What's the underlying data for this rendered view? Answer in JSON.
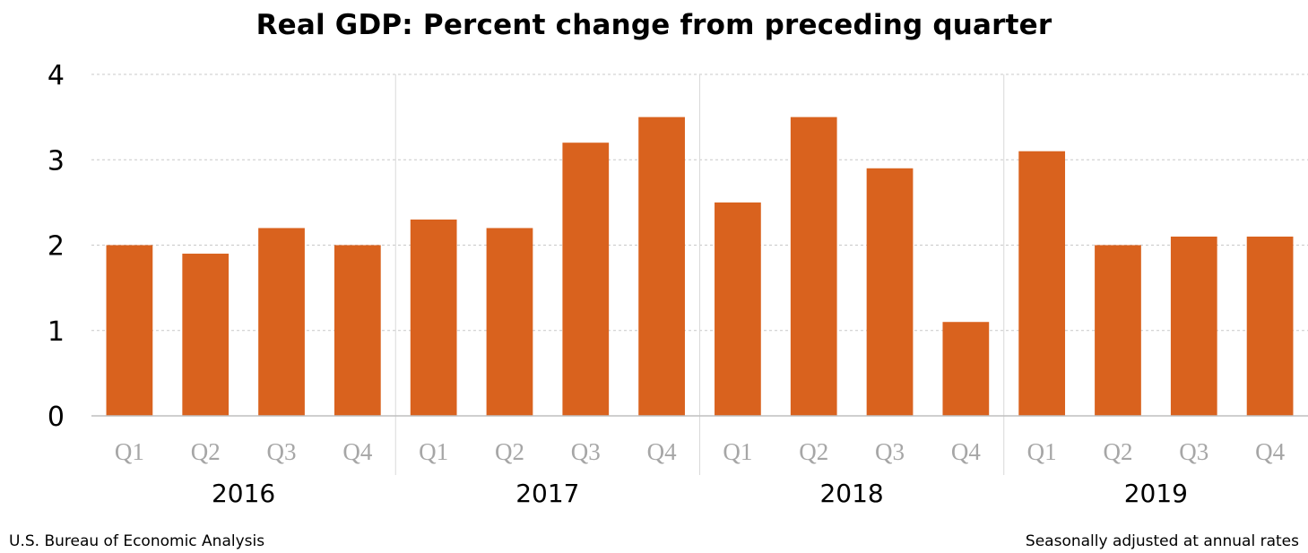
{
  "chart_data": {
    "type": "bar",
    "title": "Real GDP:  Percent change from preceding quarter",
    "groups": [
      {
        "label": "2016",
        "quarters": [
          "Q1",
          "Q2",
          "Q3",
          "Q4"
        ],
        "values": [
          2.0,
          1.9,
          2.2,
          2.0
        ]
      },
      {
        "label": "2017",
        "quarters": [
          "Q1",
          "Q2",
          "Q3",
          "Q4"
        ],
        "values": [
          2.3,
          2.2,
          3.2,
          3.5
        ]
      },
      {
        "label": "2018",
        "quarters": [
          "Q1",
          "Q2",
          "Q3",
          "Q4"
        ],
        "values": [
          2.5,
          3.5,
          2.9,
          1.1
        ]
      },
      {
        "label": "2019",
        "quarters": [
          "Q1",
          "Q2",
          "Q3",
          "Q4"
        ],
        "values": [
          3.1,
          2.0,
          2.1,
          2.1
        ]
      }
    ],
    "ylim": [
      0,
      4
    ],
    "yticks": [
      0,
      1,
      2,
      3,
      4
    ],
    "grid": true,
    "bar_color": "#D9621E"
  },
  "footer": {
    "source": "U.S. Bureau of Economic Analysis",
    "note": "Seasonally adjusted at annual rates"
  }
}
